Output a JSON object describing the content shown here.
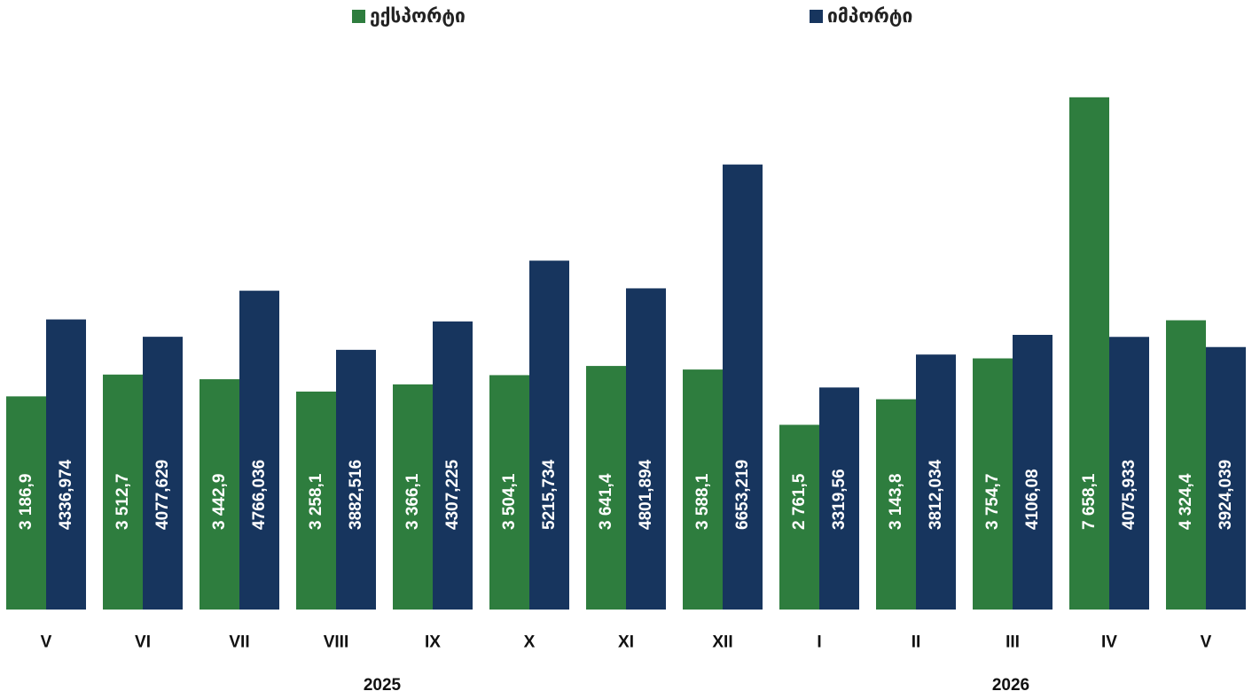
{
  "chart_data": {
    "type": "bar",
    "categories": [
      "V",
      "VI",
      "VII",
      "VIII",
      "IX",
      "X",
      "XI",
      "XII",
      "I",
      "II",
      "III",
      "IV",
      "V"
    ],
    "series": [
      {
        "name": "ექსპორტი",
        "color": "#2e7d3e",
        "values": [
          3186.9,
          3512.7,
          3442.9,
          3258.1,
          3366.1,
          3504.1,
          3641.4,
          3588.1,
          2761.5,
          3143.8,
          3754.7,
          7658.1,
          4324.4
        ],
        "labels": [
          "3 186,9",
          "3 512,7",
          "3 442,9",
          "3 258,1",
          "3 366,1",
          "3 504,1",
          "3 641,4",
          "3 588,1",
          "2 761,5",
          "3 143,8",
          "3 754,7",
          "7 658,1",
          "4 324,4"
        ]
      },
      {
        "name": "იმპორტი",
        "color": "#17355e",
        "values": [
          4336.974,
          4077.629,
          4766.036,
          3882.516,
          4307.225,
          5215.734,
          4801.894,
          6653.219,
          3319.56,
          3812.034,
          4106.08,
          4075.933,
          3924.039
        ],
        "labels": [
          "4336,974",
          "4077,629",
          "4766,036",
          "3882,516",
          "4307,225",
          "5215,734",
          "4801,894",
          "6653,219",
          "3319,56",
          "3812,034",
          "4106,08",
          "4075,933",
          "3924,039"
        ]
      }
    ],
    "year_groups": [
      {
        "label": "2025",
        "from": 0,
        "to": 7
      },
      {
        "label": "2026",
        "from": 8,
        "to": 12
      }
    ],
    "ylim": [
      0,
      8000
    ],
    "grid": false,
    "legend": "top-center"
  }
}
